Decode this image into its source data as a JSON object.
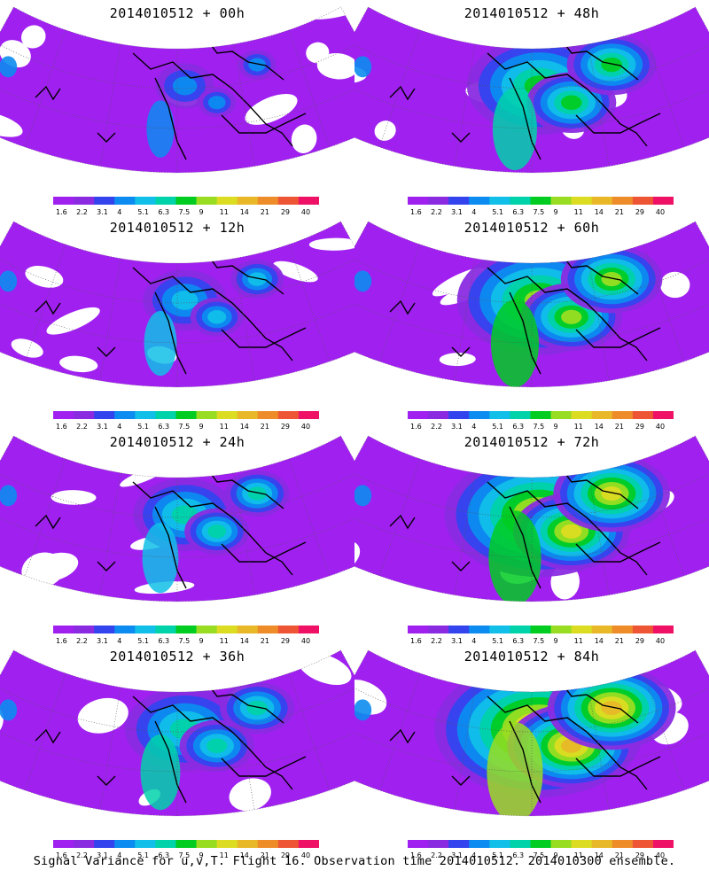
{
  "palette": [
    "#a020f0",
    "#8a2be2",
    "#3344ee",
    "#0c8cf0",
    "#11bfe8",
    "#00d2aa",
    "#00cc22",
    "#99dd22",
    "#dcdc22",
    "#e8b828",
    "#ef8c2a",
    "#ee5535",
    "#ee1166"
  ],
  "colorbar": {
    "labels": [
      "1.6",
      "2.2",
      "3.1",
      "4",
      "5.1",
      "6.3",
      "7.5",
      "9",
      "11",
      "14",
      "21",
      "29",
      "40"
    ]
  },
  "footer": "Signal Variance for u,v,T. Flight 16. Observation time 2014010512. 2014010300 ensemble.",
  "panels": [
    {
      "title": "2014010512 + 00h",
      "level": 0.08,
      "colorbar_labels": [
        "1.6",
        "2.2",
        "3.1",
        "4",
        "5.1",
        "6.3",
        "7.5",
        "9",
        "11",
        "14",
        "21",
        "29",
        "40"
      ]
    },
    {
      "title": "2014010512 + 48h",
      "level": 0.55,
      "colorbar_labels": [
        "1.6",
        "2.2",
        "3.1",
        "4",
        "5.1",
        "6.3",
        "7.5",
        "9",
        "11",
        "14",
        "21",
        "29",
        "40"
      ]
    },
    {
      "title": "2014010512 + 12h",
      "level": 0.22,
      "colorbar_labels": [
        "1.6",
        "2.2",
        "3.1",
        "4",
        "5.1",
        "6.3",
        "7.5",
        "9",
        "11",
        "14",
        "21",
        "29",
        "40"
      ]
    },
    {
      "title": "2014010512 + 60h",
      "level": 0.65,
      "colorbar_labels": [
        "1.6",
        "2.2",
        "3.1",
        "4",
        "5.1",
        "6.3",
        "7.5",
        "9",
        "11",
        "14",
        "21",
        "29",
        "40"
      ]
    },
    {
      "title": "2014010512 + 24h",
      "level": 0.32,
      "colorbar_labels": [
        "1.6",
        "2.2",
        "3.1",
        "4",
        "5.1",
        "6.3",
        "7.5",
        "9",
        "11",
        "14",
        "21",
        "29",
        "40"
      ]
    },
    {
      "title": "2014010512 + 72h",
      "level": 0.78,
      "colorbar_labels": [
        "1.6",
        "2.2",
        "3.1",
        "4",
        "5.1",
        "6.3",
        "7.5",
        "9",
        "11",
        "14",
        "21",
        "29",
        "40"
      ]
    },
    {
      "title": "2014010512 + 36h",
      "level": 0.42,
      "colorbar_labels": [
        "1.6",
        "2.2",
        "3.1",
        "4",
        "5.1",
        "6.3",
        "7.5",
        "9",
        "11",
        "14",
        "21",
        "29",
        "40"
      ]
    },
    {
      "title": "2014010512 + 84h",
      "level": 0.88,
      "colorbar_labels": [
        "1.6",
        "2.2",
        "3.1",
        "4",
        "5.1",
        "6.3",
        "7.5",
        "9",
        "11",
        "14",
        "21",
        "29",
        "40"
      ]
    }
  ]
}
